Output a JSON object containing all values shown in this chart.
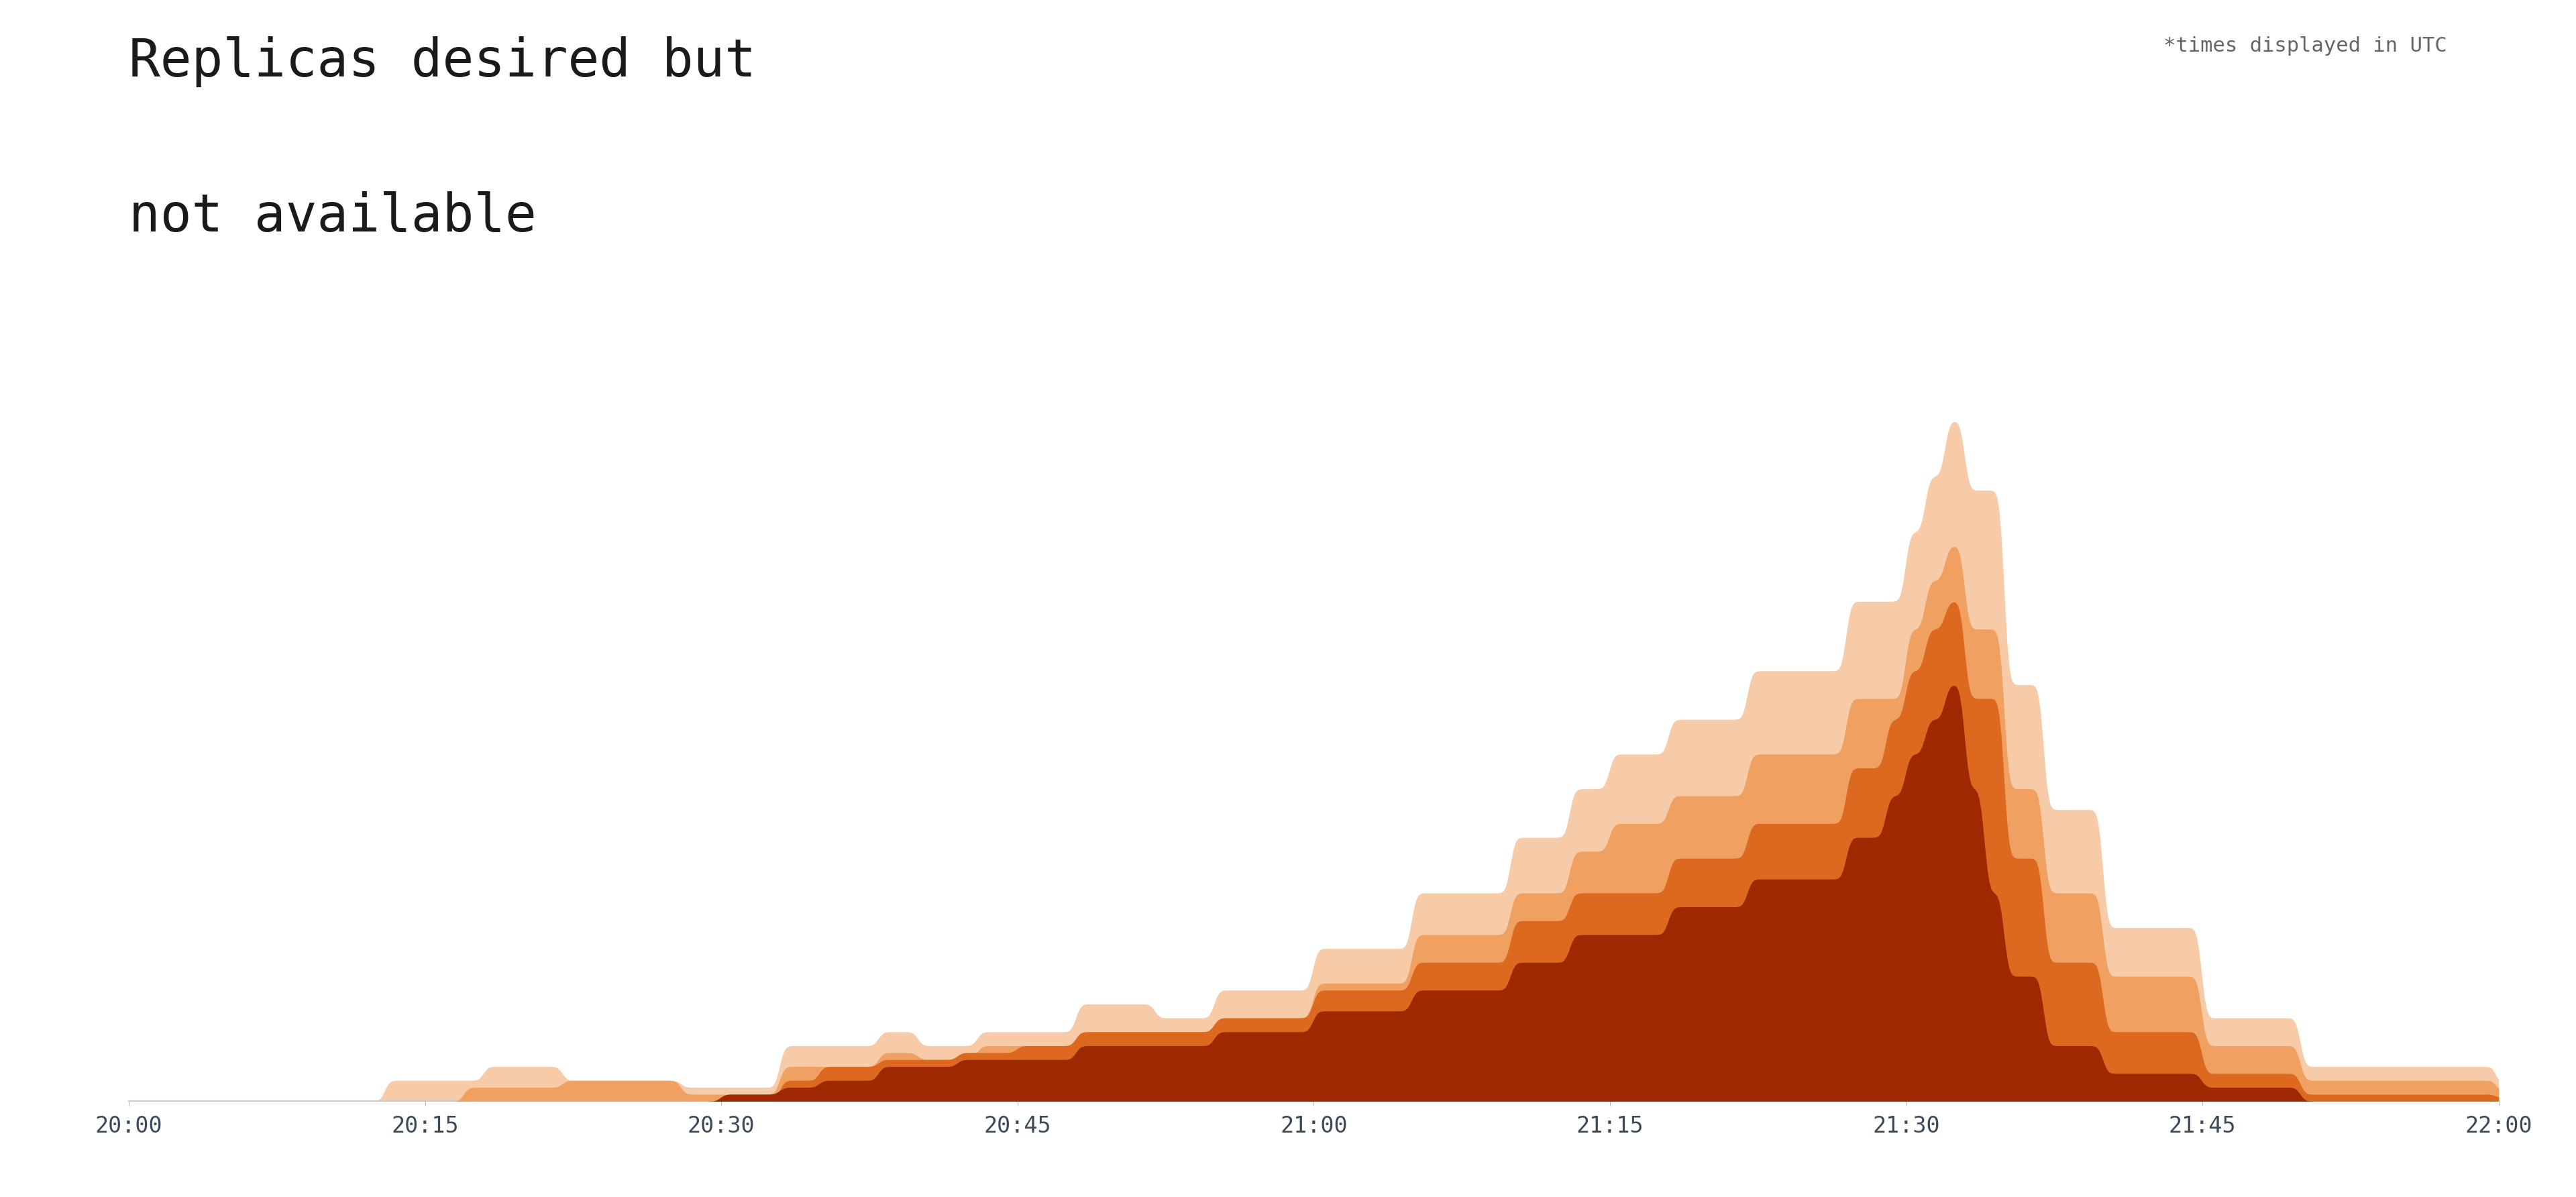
{
  "title_line1": "Replicas desired but",
  "title_line2": "not available",
  "subtitle": "*times displayed in UTC",
  "background_color": "#ffffff",
  "plot_background": "#ffffff",
  "grid_color": "#e8e8e8",
  "x_tick_color": "#3a4a5a",
  "x_ticks": [
    "20:00",
    "20:15",
    "20:30",
    "20:45",
    "21:00",
    "21:15",
    "21:30",
    "21:45",
    "22:00"
  ],
  "x_tick_pos": [
    0,
    15,
    30,
    45,
    60,
    75,
    90,
    105,
    120
  ],
  "colors": [
    "#f7cba8",
    "#f0a060",
    "#dd6820",
    "#9e2800"
  ],
  "ylim": [
    0,
    100
  ],
  "xlim": [
    0,
    120
  ],
  "n_grid_lines": 7
}
